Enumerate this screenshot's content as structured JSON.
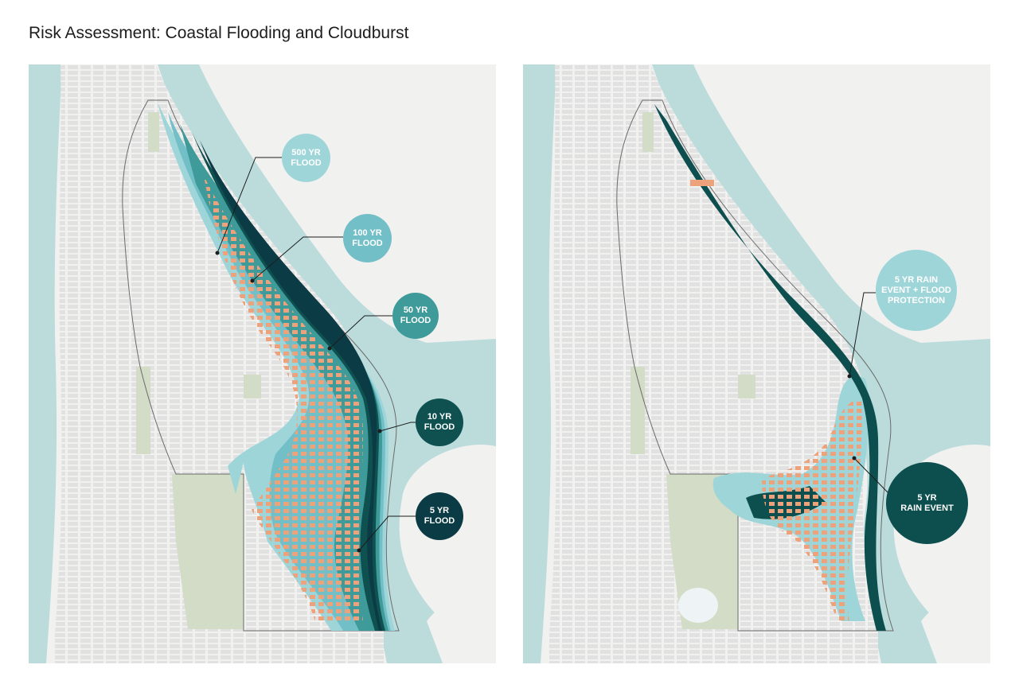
{
  "title": "Risk Assessment: Coastal Flooding and Cloudburst",
  "colors": {
    "water": "#bcdcdc",
    "land": "#f1f1f0",
    "block": "#e2e2e2",
    "park": "#d3dcc6",
    "building_at_risk": "#eda27c",
    "flood_500yr": "#9ed5d9",
    "flood_100yr": "#73bfc8",
    "flood_50yr": "#3f9a9a",
    "flood_10yr": "#0f5151",
    "flood_5yr": "#0b3b45",
    "rain_5yr_protection": "#9ed5d9",
    "rain_5yr": "#0d4f4f"
  },
  "left_map": {
    "scenario": "coastal-flooding",
    "callouts": [
      {
        "label": "500 YR\nFLOOD",
        "color": "#9ed5d9"
      },
      {
        "label": "100 YR\nFLOOD",
        "color": "#73bfc8"
      },
      {
        "label": "50 YR\nFLOOD",
        "color": "#3f9a9a"
      },
      {
        "label": "10 YR\nFLOOD",
        "color": "#0f5151"
      },
      {
        "label": "5 YR\nFLOOD",
        "color": "#0b3b45"
      }
    ]
  },
  "right_map": {
    "scenario": "cloudburst",
    "callouts": [
      {
        "label": "5 YR RAIN\nEVENT + FLOOD\nPROTECTION",
        "color": "#9ed5d9"
      },
      {
        "label": "5 YR\nRAIN EVENT",
        "color": "#0d4f4f"
      }
    ]
  }
}
